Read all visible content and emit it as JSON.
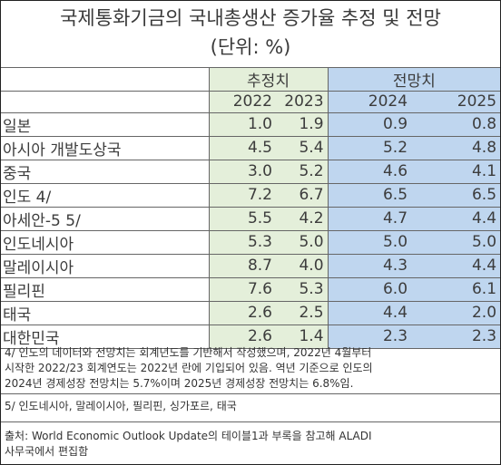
{
  "title": "국제통화기금의 국내총생산 증가율 추정 및 전망",
  "subtitle": "(단위: %)",
  "groups": {
    "estimate": "추정치",
    "projection": "전망치"
  },
  "years": [
    "2022",
    "2023",
    "2024",
    "2025"
  ],
  "rows": [
    {
      "country": "일본",
      "values": [
        "1.0",
        "1.9",
        "0.9",
        "0.8"
      ]
    },
    {
      "country": "아시아 개발도상국",
      "values": [
        "4.5",
        "5.4",
        "5.2",
        "4.8"
      ]
    },
    {
      "country": "중국",
      "values": [
        "3.0",
        "5.2",
        "4.6",
        "4.1"
      ]
    },
    {
      "country": "인도 4/",
      "values": [
        "7.2",
        "6.7",
        "6.5",
        "6.5"
      ]
    },
    {
      "country": "아세안-5 5/",
      "values": [
        "5.5",
        "4.2",
        "4.7",
        "4.4"
      ]
    },
    {
      "country": "인도네시아",
      "values": [
        "5.3",
        "5.0",
        "5.0",
        "5.0"
      ]
    },
    {
      "country": "말레이시아",
      "values": [
        "8.7",
        "4.0",
        "4.3",
        "4.4"
      ]
    },
    {
      "country": "필리핀",
      "values": [
        "7.6",
        "5.3",
        "6.0",
        "6.1"
      ]
    },
    {
      "country": "태국",
      "values": [
        "2.6",
        "2.5",
        "4.4",
        "2.0"
      ]
    },
    {
      "country": "대한민국",
      "values": [
        "2.6",
        "1.4",
        "2.3",
        "2.3"
      ]
    }
  ],
  "notes": {
    "note4": [
      "4/ 인도의 데이터와 전망치는 회계년도를 기반해서 작성했으며, 2022년 4월부터",
      "시작한 2022/23 회계연도는 2022년 란에 기입되어 있음. 역년 기준으로 인도의",
      "2024년 경제성장 전망치는 5.7%이며 2025년 경제성장 전망치는 6.8%임."
    ],
    "note5": "5/ 인도네시아, 말레이시아, 필리핀, 싱가포르, 태국",
    "source": [
      "출처: World Economic Outlook Update의 테이블1과 부록을 참고해 ALADI",
      "사무국에서 편집함"
    ]
  }
}
